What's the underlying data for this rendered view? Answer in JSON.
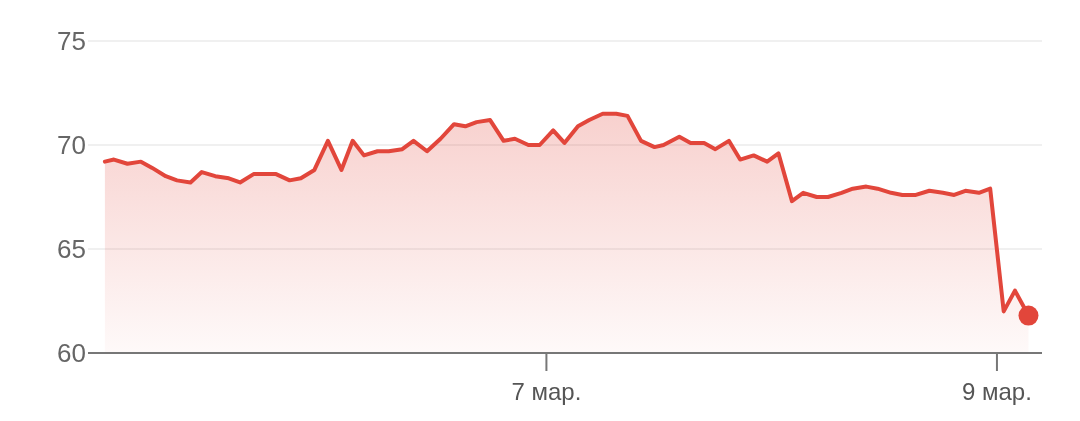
{
  "chart_data": {
    "type": "area",
    "grid": "y",
    "marker": "none",
    "line_style": "solid",
    "xlim": [
      4.965,
      9.2
    ],
    "xticks": [
      {
        "value": 7,
        "label": "7 мар."
      },
      {
        "value": 9,
        "label": "9 мар."
      }
    ],
    "ylim": [
      60,
      75
    ],
    "yticks": [
      60,
      65,
      70,
      75
    ],
    "series": [
      {
        "color": "#e2463b",
        "x": [
          5.04,
          5.08,
          5.14,
          5.2,
          5.25,
          5.31,
          5.36,
          5.42,
          5.47,
          5.53,
          5.59,
          5.64,
          5.7,
          5.75,
          5.8,
          5.86,
          5.91,
          5.97,
          6.03,
          6.09,
          6.14,
          6.19,
          6.25,
          6.3,
          6.36,
          6.41,
          6.47,
          6.53,
          6.59,
          6.64,
          6.69,
          6.75,
          6.81,
          6.86,
          6.92,
          6.97,
          7.03,
          7.08,
          7.14,
          7.19,
          7.25,
          7.31,
          7.36,
          7.42,
          7.48,
          7.52,
          7.59,
          7.64,
          7.7,
          7.75,
          7.81,
          7.86,
          7.92,
          7.98,
          8.03,
          8.09,
          8.14,
          8.2,
          8.25,
          8.31,
          8.36,
          8.42,
          8.47,
          8.53,
          8.58,
          8.64,
          8.7,
          8.76,
          8.81,
          8.86,
          8.92,
          8.97,
          9.03,
          9.08,
          9.14
        ],
        "values": [
          69.2,
          69.3,
          69.1,
          69.2,
          68.9,
          68.5,
          68.3,
          68.2,
          68.7,
          68.5,
          68.4,
          68.2,
          68.6,
          68.6,
          68.6,
          68.3,
          68.4,
          68.8,
          70.2,
          68.8,
          70.2,
          69.5,
          69.7,
          69.7,
          69.8,
          70.2,
          69.7,
          70.3,
          71.0,
          70.9,
          71.1,
          71.2,
          70.2,
          70.3,
          70.0,
          70.0,
          70.7,
          70.1,
          70.9,
          71.2,
          71.5,
          71.5,
          71.4,
          70.2,
          69.9,
          70.0,
          70.4,
          70.1,
          70.1,
          69.8,
          70.2,
          69.3,
          69.5,
          69.2,
          69.6,
          67.3,
          67.7,
          67.5,
          67.5,
          67.7,
          67.9,
          68.0,
          67.9,
          67.7,
          67.6,
          67.6,
          67.8,
          67.7,
          67.6,
          67.8,
          67.7,
          67.9,
          62.0,
          63.0,
          61.8
        ]
      },
      {
        "type": "scatter",
        "color": "#e2463b",
        "marker": "circle",
        "x": [
          9.14
        ],
        "values": [
          61.8
        ]
      }
    ]
  }
}
